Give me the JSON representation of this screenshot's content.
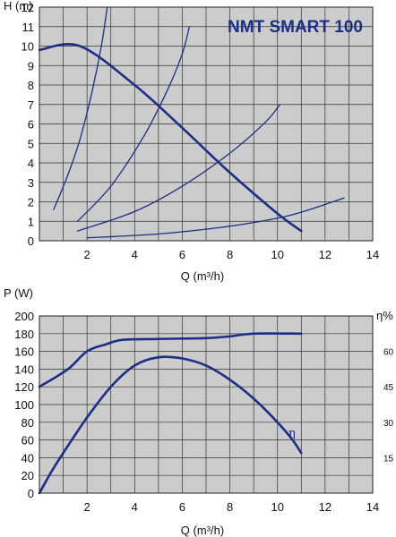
{
  "chart_data": [
    {
      "type": "line",
      "title": "NMT SMART 100",
      "xlabel": "Q (m³/h)",
      "ylabel": "H (m)",
      "xlim": [
        0,
        14
      ],
      "ylim": [
        0,
        12
      ],
      "x_ticks": [
        "2",
        "4",
        "6",
        "8",
        "10",
        "12",
        "14"
      ],
      "y_ticks": [
        "0",
        "1",
        "2",
        "3",
        "4",
        "5",
        "6",
        "7",
        "8",
        "9",
        "10",
        "11",
        "12"
      ],
      "grid": true,
      "background_color": "#cccccc",
      "line_color": "#1b2f86",
      "series": [
        {
          "role": "pump-curve",
          "points": [
            [
              0,
              9.8
            ],
            [
              1.7,
              10.0
            ],
            [
              4,
              8.0
            ],
            [
              6,
              5.8
            ],
            [
              8,
              3.5
            ],
            [
              10,
              1.4
            ],
            [
              11,
              0.5
            ]
          ]
        },
        {
          "role": "system-curve",
          "points": [
            [
              0.6,
              1.6
            ],
            [
              1.2,
              3.4
            ],
            [
              1.7,
              5.2
            ],
            [
              2.2,
              7.6
            ],
            [
              2.6,
              10.0
            ],
            [
              2.85,
              12.0
            ]
          ]
        },
        {
          "role": "system-curve",
          "points": [
            [
              1.6,
              1.0
            ],
            [
              3.0,
              2.8
            ],
            [
              4.4,
              5.4
            ],
            [
              5.4,
              7.8
            ],
            [
              6.0,
              9.6
            ],
            [
              6.3,
              11.0
            ]
          ]
        },
        {
          "role": "system-curve",
          "points": [
            [
              1.6,
              0.5
            ],
            [
              4.0,
              1.5
            ],
            [
              6.0,
              2.8
            ],
            [
              8.0,
              4.5
            ],
            [
              9.5,
              6.1
            ],
            [
              10.1,
              7.0
            ]
          ]
        },
        {
          "role": "system-curve",
          "points": [
            [
              2.0,
              0.15
            ],
            [
              5.0,
              0.35
            ],
            [
              8.0,
              0.75
            ],
            [
              10.5,
              1.3
            ],
            [
              12.8,
              2.2
            ]
          ]
        }
      ]
    },
    {
      "type": "line",
      "xlabel": "Q (m³/h)",
      "ylabel": "P (W)",
      "y2label": "η%",
      "xlim": [
        0,
        14
      ],
      "ylim": [
        0,
        200
      ],
      "y2lim": [
        0,
        75
      ],
      "x_ticks": [
        "2",
        "4",
        "6",
        "8",
        "10",
        "12",
        "14"
      ],
      "y_ticks": [
        "0",
        "20",
        "40",
        "60",
        "80",
        "100",
        "120",
        "140",
        "160",
        "180",
        "200"
      ],
      "y2_ticks": [
        "15",
        "30",
        "45",
        "60"
      ],
      "y2_tick_values": [
        15,
        30,
        45,
        60
      ],
      "grid": true,
      "background_color": "#cccccc",
      "line_color": "#1b2f86",
      "annotation": "η",
      "series": [
        {
          "role": "power",
          "points": [
            [
              0,
              120
            ],
            [
              1.2,
              140
            ],
            [
              2,
              160
            ],
            [
              2.8,
              168
            ],
            [
              3.5,
              173
            ],
            [
              5,
              174
            ],
            [
              7,
              175
            ],
            [
              8,
              177
            ],
            [
              9,
              180
            ],
            [
              11,
              180
            ]
          ]
        },
        {
          "role": "efficiency",
          "points": [
            [
              0,
              0
            ],
            [
              0.5,
              9
            ],
            [
              1,
              17
            ],
            [
              2,
              32
            ],
            [
              3,
              45
            ],
            [
              4,
              54
            ],
            [
              5,
              57.5
            ],
            [
              6,
              57
            ],
            [
              7,
              54
            ],
            [
              8,
              48
            ],
            [
              9,
              40
            ],
            [
              10,
              30
            ],
            [
              10.6,
              23
            ],
            [
              11,
              17
            ]
          ]
        }
      ]
    }
  ]
}
